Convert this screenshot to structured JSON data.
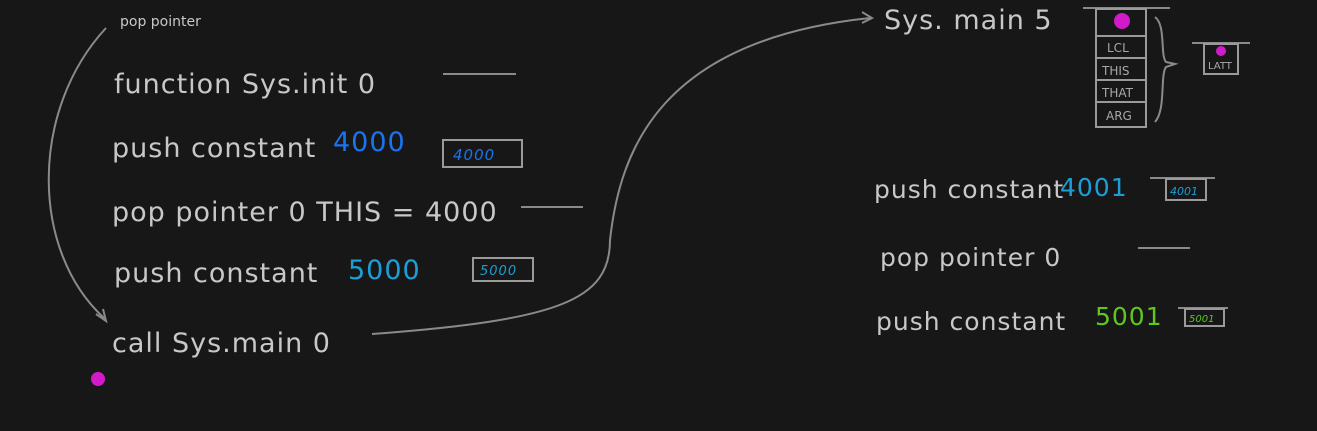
{
  "left": {
    "annotation": "pop pointer",
    "lines": [
      {
        "text": "function Sys.init 0"
      },
      {
        "text": "push constant",
        "value": "4000",
        "box": "4000"
      },
      {
        "text": "pop  pointer 0   THIS = 4000"
      },
      {
        "text": "push constant",
        "value": "5000",
        "box": "5000"
      },
      {
        "text": "call  Sys.main  0"
      }
    ]
  },
  "right": {
    "header": "Sys. main  5",
    "stack_frame": [
      "LCL",
      "THIS",
      "THAT",
      "ARG"
    ],
    "side_box": "LATT",
    "lines": [
      {
        "text": "push constant",
        "value": "4001",
        "box": "4001"
      },
      {
        "text": "pop  pointer 0"
      },
      {
        "text": "push  constant",
        "value": "5001",
        "box": "5001"
      }
    ]
  },
  "colors": {
    "background": "#171717",
    "chalk": "#c8c8c8",
    "blue": "#1a73f0",
    "cyan": "#1b9fd6",
    "green": "#5fc71e",
    "magenta": "#d21bc8"
  }
}
